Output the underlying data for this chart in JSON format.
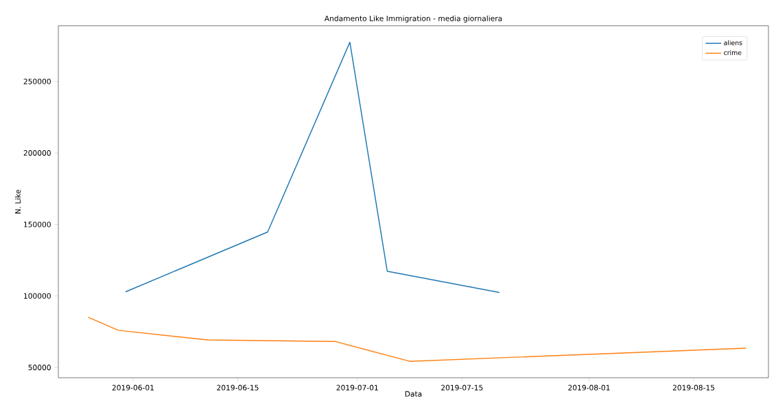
{
  "chart_data": {
    "type": "line",
    "title": "Andamento Like Immigration - media giornaliera",
    "xlabel": "Data",
    "ylabel": "N. Like",
    "series": [
      {
        "name": "aliens",
        "color": "#1f77b4",
        "x": [
          "2019-05-31",
          "2019-06-19",
          "2019-06-30",
          "2019-07-05",
          "2019-07-20"
        ],
        "values": [
          102900,
          144700,
          277400,
          117300,
          102400
        ]
      },
      {
        "name": "crime",
        "color": "#ff7f0e",
        "x": [
          "2019-05-26",
          "2019-05-30",
          "2019-06-11",
          "2019-06-28",
          "2019-07-08",
          "2019-08-22"
        ],
        "values": [
          85100,
          76000,
          69200,
          68200,
          54300,
          63500
        ]
      }
    ],
    "xlim": [
      "2019-05-22",
      "2019-08-25"
    ],
    "ylim": [
      42800,
      288900
    ],
    "xticks": [
      "2019-06-01",
      "2019-06-15",
      "2019-07-01",
      "2019-07-15",
      "2019-08-01",
      "2019-08-15"
    ],
    "yticks": [
      50000,
      100000,
      150000,
      200000,
      250000
    ],
    "legend": "top right",
    "grid": false,
    "marker": "none",
    "line_style": "solid"
  }
}
